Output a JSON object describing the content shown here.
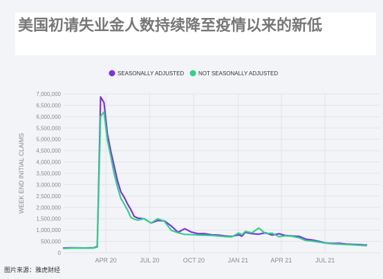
{
  "title": "美国初请失业金人数持续降至疫情以来的新低",
  "source": "图片来源：雅虎财经",
  "colors": {
    "seasonally_adjusted": "#7b2ff0",
    "not_seasonally_adjusted": "#2dd484",
    "axis_text": "#8a8a8a",
    "grid": "#e2e3e8"
  },
  "chart_data": {
    "type": "line",
    "ylabel": "WEEK END INITIAL CLAIMS",
    "xlabel": "",
    "ylim": [
      0,
      7000000
    ],
    "y_ticks": [
      0,
      500000,
      1000000,
      1500000,
      2000000,
      2500000,
      3000000,
      3500000,
      4000000,
      4500000,
      5000000,
      5500000,
      6000000,
      6500000,
      7000000
    ],
    "y_tick_labels": [
      "0",
      "500,000",
      "1,000,000",
      "1,500,000",
      "2,000,000",
      "2,500,000",
      "3,000,000",
      "3,500,000",
      "4,000,000",
      "4,500,000",
      "5,000,000",
      "5,500,000",
      "6,000,000",
      "6,500,000",
      "7,000,000"
    ],
    "x_ticks": [
      {
        "label": "APR 20",
        "date": "2020-04-01"
      },
      {
        "label": "JUL 20",
        "date": "2020-07-01"
      },
      {
        "label": "OCT 20",
        "date": "2020-10-01"
      },
      {
        "label": "JAN 21",
        "date": "2021-01-01"
      },
      {
        "label": "APR 21",
        "date": "2021-04-01"
      },
      {
        "label": "JUL 21",
        "date": "2021-07-01"
      }
    ],
    "legend_position": "top-center",
    "grid": true,
    "dates": [
      "2020-01-04",
      "2020-01-18",
      "2020-02-01",
      "2020-02-15",
      "2020-02-29",
      "2020-03-07",
      "2020-03-14",
      "2020-03-21",
      "2020-03-28",
      "2020-04-04",
      "2020-04-11",
      "2020-04-18",
      "2020-04-25",
      "2020-05-02",
      "2020-05-09",
      "2020-05-16",
      "2020-05-23",
      "2020-05-30",
      "2020-06-06",
      "2020-06-20",
      "2020-07-04",
      "2020-07-18",
      "2020-08-01",
      "2020-08-15",
      "2020-08-29",
      "2020-09-12",
      "2020-09-26",
      "2020-10-10",
      "2020-10-24",
      "2020-11-07",
      "2020-11-21",
      "2020-12-05",
      "2020-12-19",
      "2021-01-02",
      "2021-01-09",
      "2021-01-16",
      "2021-01-30",
      "2021-02-13",
      "2021-02-27",
      "2021-03-13",
      "2021-03-27",
      "2021-04-10",
      "2021-04-24",
      "2021-05-08",
      "2021-05-22",
      "2021-06-05",
      "2021-06-19",
      "2021-07-03",
      "2021-07-17",
      "2021-07-31",
      "2021-08-14",
      "2021-08-28",
      "2021-09-11",
      "2021-09-25"
    ],
    "series": [
      {
        "name": "SEASONALLY ADJUSTED",
        "values": [
          210000,
          215000,
          215000,
          210000,
          215000,
          220000,
          280000,
          6870000,
          6620000,
          5250000,
          4500000,
          3840000,
          3180000,
          2690000,
          2450000,
          2150000,
          1900000,
          1600000,
          1530000,
          1490000,
          1310000,
          1420000,
          1400000,
          1180000,
          900000,
          1060000,
          910000,
          840000,
          840000,
          790000,
          780000,
          740000,
          720000,
          790000,
          730000,
          900000,
          840000,
          820000,
          880000,
          780000,
          840000,
          760000,
          740000,
          720000,
          600000,
          560000,
          500000,
          430000,
          410000,
          420000,
          380000,
          370000,
          360000,
          340000
        ]
      },
      {
        "name": "NOT SEASONALLY ADJUSTED",
        "values": [
          190000,
          200000,
          210000,
          200000,
          200000,
          210000,
          250000,
          6010000,
          6210000,
          4970000,
          4270000,
          3500000,
          2900000,
          2400000,
          2150000,
          1880000,
          1560000,
          1480000,
          1440000,
          1500000,
          1310000,
          1500000,
          1380000,
          990000,
          880000,
          810000,
          800000,
          780000,
          770000,
          760000,
          740000,
          710000,
          700000,
          870000,
          790000,
          940000,
          880000,
          1090000,
          850000,
          860000,
          710000,
          750000,
          720000,
          660000,
          540000,
          510000,
          470000,
          420000,
          390000,
          380000,
          360000,
          350000,
          330000,
          310000
        ]
      }
    ]
  }
}
